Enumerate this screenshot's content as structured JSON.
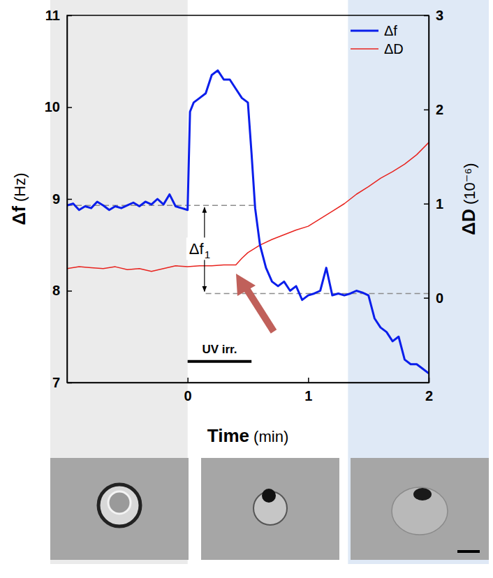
{
  "chart_data": {
    "type": "line",
    "x_label": "Time (min)",
    "y_label": "Δf (Hz)",
    "y2_label": "ΔD (10⁻⁶)",
    "xlim": [
      -1,
      2
    ],
    "xticks": [
      0,
      1,
      2
    ],
    "ylim": [
      7,
      11
    ],
    "yticks": [
      7,
      8,
      9,
      10,
      11
    ],
    "y2lim": [
      -0.9,
      3
    ],
    "y2ticks": [
      0,
      1,
      2,
      3
    ],
    "legend": "upper right",
    "grid": false,
    "series": [
      {
        "name": "Δf",
        "color": "#0a1eeb",
        "axis": "y",
        "x": [
          -1.0,
          -0.95,
          -0.9,
          -0.85,
          -0.8,
          -0.75,
          -0.7,
          -0.65,
          -0.6,
          -0.55,
          -0.5,
          -0.45,
          -0.4,
          -0.35,
          -0.3,
          -0.25,
          -0.2,
          -0.15,
          -0.1,
          -0.05,
          0.0,
          0.02,
          0.05,
          0.1,
          0.15,
          0.2,
          0.25,
          0.3,
          0.35,
          0.4,
          0.45,
          0.5,
          0.53,
          0.56,
          0.6,
          0.65,
          0.7,
          0.75,
          0.8,
          0.85,
          0.9,
          0.95,
          1.0,
          1.05,
          1.1,
          1.15,
          1.2,
          1.25,
          1.3,
          1.35,
          1.4,
          1.45,
          1.5,
          1.55,
          1.6,
          1.65,
          1.7,
          1.75,
          1.8,
          1.85,
          1.9,
          1.95,
          2.0
        ],
        "values": [
          8.93,
          8.95,
          8.88,
          8.92,
          8.9,
          8.97,
          8.93,
          8.88,
          8.92,
          8.9,
          8.93,
          8.96,
          8.92,
          8.97,
          8.94,
          9.0,
          8.94,
          9.05,
          8.92,
          8.9,
          8.88,
          9.95,
          10.05,
          10.1,
          10.15,
          10.35,
          10.4,
          10.3,
          10.3,
          10.2,
          10.1,
          10.05,
          9.5,
          8.9,
          8.5,
          8.25,
          8.1,
          8.05,
          8.1,
          8.0,
          8.05,
          7.9,
          7.95,
          7.97,
          8.0,
          8.25,
          7.95,
          7.97,
          7.95,
          7.97,
          8.0,
          7.98,
          7.95,
          7.7,
          7.6,
          7.55,
          7.45,
          7.5,
          7.25,
          7.2,
          7.2,
          7.15,
          7.1
        ]
      },
      {
        "name": "ΔD",
        "color": "#e8231e",
        "axis": "y2",
        "x": [
          -1.0,
          -0.9,
          -0.8,
          -0.7,
          -0.6,
          -0.5,
          -0.4,
          -0.3,
          -0.2,
          -0.1,
          0.0,
          0.1,
          0.2,
          0.3,
          0.4,
          0.45,
          0.5,
          0.6,
          0.7,
          0.8,
          0.9,
          1.0,
          1.1,
          1.2,
          1.3,
          1.4,
          1.5,
          1.6,
          1.7,
          1.8,
          1.9,
          2.0
        ],
        "values": [
          0.31,
          0.33,
          0.32,
          0.31,
          0.33,
          0.3,
          0.31,
          0.28,
          0.31,
          0.34,
          0.33,
          0.34,
          0.34,
          0.35,
          0.35,
          0.42,
          0.48,
          0.56,
          0.62,
          0.67,
          0.72,
          0.76,
          0.84,
          0.92,
          1.0,
          1.1,
          1.18,
          1.27,
          1.34,
          1.42,
          1.52,
          1.65
        ]
      }
    ],
    "regions": [
      {
        "x0": -1,
        "x1": 0,
        "color": "#ebebeb"
      },
      {
        "x0": 1.33,
        "x1": 2,
        "color": "#dfe9f6"
      }
    ],
    "reference_lines": [
      {
        "y": 8.93,
        "x0": -1,
        "x1": 0.55
      },
      {
        "y": 7.97,
        "x0": 0.15,
        "x1": 2
      }
    ],
    "delta_annotation": {
      "text": "Δf",
      "subscript": "1",
      "x": 0.14,
      "y_from": 8.93,
      "y_to": 7.97
    },
    "uv_bar": {
      "text": "UV irr.",
      "x0": 0,
      "x1": 0.53,
      "y": 7.23
    }
  }
}
